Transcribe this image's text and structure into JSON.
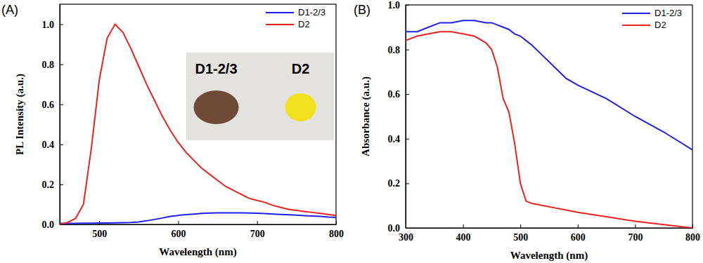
{
  "chart_data": [
    {
      "type": "line",
      "title": "(A)",
      "xlabel": "Wavelength (nm)",
      "ylabel": "PL Intensity (a.u.)",
      "xlim": [
        450,
        800
      ],
      "xticks": [
        500,
        600,
        700,
        800
      ],
      "ylim": [
        0,
        1.1
      ],
      "yticks": [
        {
          "value": 0,
          "label": "0.0"
        },
        {
          "value": 0.2,
          "label": "0.2"
        },
        {
          "value": 0.4,
          "label": "0.4"
        },
        {
          "value": 0.6,
          "label": "0.6"
        },
        {
          "value": 0.8,
          "label": "0.8"
        },
        {
          "value": 1.0,
          "label": "1.0"
        }
      ],
      "legend": "upper right",
      "annotations": [
        "D1-2/3",
        "D2"
      ],
      "x": [
        450,
        460,
        470,
        480,
        490,
        500,
        510,
        520,
        530,
        540,
        550,
        560,
        570,
        580,
        590,
        600,
        610,
        620,
        630,
        640,
        650,
        660,
        670,
        680,
        690,
        700,
        710,
        720,
        730,
        740,
        750,
        760,
        770,
        780,
        790,
        800
      ],
      "series": [
        {
          "name": "D1-2/3",
          "color": "#1f1fe8",
          "values": [
            0.005,
            0.005,
            0.005,
            0.006,
            0.006,
            0.007,
            0.007,
            0.008,
            0.009,
            0.01,
            0.012,
            0.018,
            0.025,
            0.032,
            0.04,
            0.045,
            0.049,
            0.052,
            0.055,
            0.057,
            0.058,
            0.058,
            0.058,
            0.058,
            0.057,
            0.056,
            0.054,
            0.052,
            0.05,
            0.048,
            0.046,
            0.044,
            0.042,
            0.04,
            0.037,
            0.035
          ]
        },
        {
          "name": "D2",
          "color": "#e8231f",
          "values": [
            0.0,
            0.01,
            0.03,
            0.1,
            0.38,
            0.72,
            0.93,
            1.0,
            0.96,
            0.88,
            0.79,
            0.7,
            0.62,
            0.54,
            0.47,
            0.41,
            0.36,
            0.32,
            0.28,
            0.25,
            0.22,
            0.19,
            0.17,
            0.15,
            0.13,
            0.12,
            0.11,
            0.095,
            0.085,
            0.075,
            0.07,
            0.065,
            0.06,
            0.055,
            0.05,
            0.045
          ]
        }
      ]
    },
    {
      "type": "line",
      "title": "(B)",
      "xlabel": "Wavelength (nm)",
      "ylabel": "Absorbance (a.u.)",
      "xlim": [
        300,
        800
      ],
      "xticks": [
        300,
        400,
        500,
        600,
        700,
        800
      ],
      "ylim": [
        0,
        1.0
      ],
      "yticks": [
        {
          "value": 0,
          "label": "0.0"
        },
        {
          "value": 0.2,
          "label": "0.2"
        },
        {
          "value": 0.4,
          "label": "0.4"
        },
        {
          "value": 0.6,
          "label": "0.6"
        },
        {
          "value": 0.8,
          "label": "0.8"
        },
        {
          "value": 1.0,
          "label": "1.0"
        }
      ],
      "legend": "upper right",
      "x": [
        300,
        320,
        340,
        360,
        380,
        400,
        420,
        440,
        450,
        460,
        470,
        480,
        490,
        500,
        510,
        520,
        540,
        560,
        580,
        600,
        650,
        700,
        750,
        800
      ],
      "series": [
        {
          "name": "D1-2/3",
          "color": "#1f1fe8",
          "values": [
            0.88,
            0.88,
            0.9,
            0.92,
            0.92,
            0.93,
            0.93,
            0.92,
            0.92,
            0.91,
            0.9,
            0.89,
            0.87,
            0.86,
            0.84,
            0.82,
            0.77,
            0.72,
            0.67,
            0.64,
            0.58,
            0.5,
            0.43,
            0.35
          ]
        },
        {
          "name": "D2",
          "color": "#e8231f",
          "values": [
            0.84,
            0.86,
            0.87,
            0.88,
            0.88,
            0.87,
            0.86,
            0.83,
            0.8,
            0.72,
            0.58,
            0.52,
            0.38,
            0.2,
            0.12,
            0.11,
            0.1,
            0.09,
            0.08,
            0.07,
            0.05,
            0.03,
            0.015,
            0.0
          ]
        }
      ]
    }
  ]
}
